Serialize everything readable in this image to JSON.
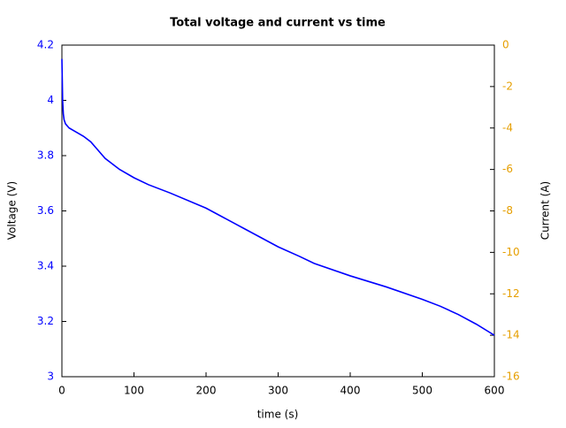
{
  "chart_data": {
    "type": "line",
    "title": "Total voltage and current vs time",
    "xlabel": "time (s)",
    "ylabel": "Voltage (V)",
    "y2label": "Current (A)",
    "xlim": [
      0,
      600
    ],
    "xticks": [
      0,
      100,
      200,
      300,
      400,
      500,
      600
    ],
    "ylim": [
      3,
      4.2
    ],
    "yticks": [
      3,
      3.2,
      3.4,
      3.6,
      3.8,
      4,
      4.2
    ],
    "ycolor": "#0000ff",
    "y2lim": [
      -16,
      0
    ],
    "y2ticks": [
      -16,
      -14,
      -12,
      -10,
      -8,
      -6,
      -4,
      -2,
      0
    ],
    "y2color": "#e69f00",
    "x": [
      0,
      1,
      2,
      3,
      5,
      10,
      20,
      30,
      40,
      50,
      60,
      70,
      80,
      100,
      120,
      150,
      200,
      250,
      300,
      330,
      350,
      400,
      450,
      500,
      525,
      550,
      575,
      600
    ],
    "series": [
      {
        "name": "Voltage",
        "color": "#0000ff",
        "values": [
          4.15,
          4.0,
          3.95,
          3.93,
          3.915,
          3.9,
          3.885,
          3.87,
          3.85,
          3.82,
          3.79,
          3.77,
          3.75,
          3.72,
          3.695,
          3.665,
          3.61,
          3.54,
          3.47,
          3.435,
          3.41,
          3.365,
          3.325,
          3.28,
          3.255,
          3.225,
          3.19,
          3.15
        ]
      }
    ]
  }
}
